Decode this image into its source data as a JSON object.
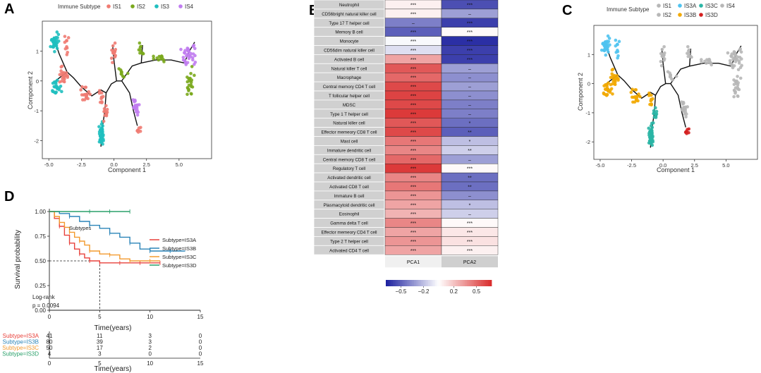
{
  "panel_letters": {
    "a": "A",
    "b": "B",
    "c": "C",
    "d": "D"
  },
  "colors": {
    "IS1": "#f07b72",
    "IS2": "#7aa81c",
    "IS3": "#1fbfbf",
    "IS4": "#c07cf0",
    "IS3A": "#e8413b",
    "IS3B": "#2a84b8",
    "IS3C": "#f39a2e",
    "IS3D": "#2aa06a",
    "heat_low": "#1b1f9e",
    "heat_mid": "#ffffff",
    "heat_high": "#d92b2b",
    "row_label_bg": "#d0d0d0"
  },
  "chart_data": [
    {
      "id": "A",
      "type": "scatter",
      "title": "",
      "xlabel": "Component 1",
      "ylabel": "Component 2",
      "xlim": [
        -5.5,
        7.5
      ],
      "ylim": [
        -2.6,
        2.0
      ],
      "xticks": [
        "-5.0",
        "-2.5",
        "0.0",
        "2.5",
        "5.0"
      ],
      "yticks": [
        "1",
        "0",
        "-1",
        "-2"
      ],
      "legend_title": "Immune Subtype",
      "legend": [
        "IS1",
        "IS2",
        "IS3",
        "IS4"
      ]
    },
    {
      "id": "B",
      "type": "heatmap",
      "columns": [
        "PCA1",
        "PCA2"
      ],
      "rows": [
        {
          "label": "Neutrophil",
          "v1": 0.05,
          "v2": -0.55,
          "s1": "***",
          "s2": "***"
        },
        {
          "label": "CD56bright natural killer cell",
          "v1": 0.05,
          "v2": -0.3,
          "s1": "***",
          "s2": "–"
        },
        {
          "label": "Type 17 T helper cell",
          "v1": -0.4,
          "v2": -0.6,
          "s1": "–",
          "s2": "***"
        },
        {
          "label": "Memory B cell",
          "v1": -0.5,
          "v2": 0.02,
          "s1": "***",
          "s2": "***"
        },
        {
          "label": "Monocyte",
          "v1": -0.02,
          "v2": -0.65,
          "s1": "***",
          "s2": "***"
        },
        {
          "label": "CD56dim natural killer cell",
          "v1": -0.1,
          "v2": -0.6,
          "s1": "***",
          "s2": "***"
        },
        {
          "label": "Activated B cell",
          "v1": 0.3,
          "v2": -0.6,
          "s1": "***",
          "s2": "***"
        },
        {
          "label": "Natural killer T cell",
          "v1": 0.55,
          "v2": -0.3,
          "s1": "***",
          "s2": "–"
        },
        {
          "label": "Macrophage",
          "v1": 0.5,
          "v2": -0.35,
          "s1": "***",
          "s2": "–"
        },
        {
          "label": "Central memory CD4 T cell",
          "v1": 0.6,
          "v2": -0.3,
          "s1": "***",
          "s2": "–"
        },
        {
          "label": "T follicular helper cell",
          "v1": 0.62,
          "v2": -0.35,
          "s1": "***",
          "s2": "–"
        },
        {
          "label": "MDSC",
          "v1": 0.6,
          "v2": -0.4,
          "s1": "***",
          "s2": "–"
        },
        {
          "label": "Type 1 T helper cell",
          "v1": 0.65,
          "v2": -0.4,
          "s1": "***",
          "s2": "–"
        },
        {
          "label": "Natural killer cell",
          "v1": 0.55,
          "v2": -0.45,
          "s1": "***",
          "s2": "*"
        },
        {
          "label": "Effector memeory CD8 T cell",
          "v1": 0.6,
          "v2": -0.5,
          "s1": "***",
          "s2": "**"
        },
        {
          "label": "Mast cell",
          "v1": 0.45,
          "v2": -0.2,
          "s1": "***",
          "s2": "*"
        },
        {
          "label": "Immature dendritic cell",
          "v1": 0.4,
          "v2": -0.15,
          "s1": "***",
          "s2": "**"
        },
        {
          "label": "Central memory CD8 T cell",
          "v1": 0.5,
          "v2": -0.3,
          "s1": "***",
          "s2": "–"
        },
        {
          "label": "Regulatory T cell",
          "v1": 0.65,
          "v2": 0.02,
          "s1": "***",
          "s2": "***"
        },
        {
          "label": "Activated dendritic cell",
          "v1": 0.4,
          "v2": -0.45,
          "s1": "***",
          "s2": "**"
        },
        {
          "label": "Activated CD8 T cell",
          "v1": 0.45,
          "v2": -0.45,
          "s1": "***",
          "s2": "**"
        },
        {
          "label": "Immature  B cell",
          "v1": 0.35,
          "v2": -0.35,
          "s1": "***",
          "s2": "–"
        },
        {
          "label": "Plasmacytoid dendritic cell",
          "v1": 0.3,
          "v2": -0.2,
          "s1": "***",
          "s2": "*"
        },
        {
          "label": "Eosinophil",
          "v1": 0.25,
          "v2": -0.15,
          "s1": "***",
          "s2": "–"
        },
        {
          "label": "Gamma delta T cell",
          "v1": 0.4,
          "v2": 0.02,
          "s1": "***",
          "s2": "***"
        },
        {
          "label": "Effector memeory CD4 T cell",
          "v1": 0.3,
          "v2": 0.08,
          "s1": "***",
          "s2": "***"
        },
        {
          "label": "Type 2 T helper cell",
          "v1": 0.35,
          "v2": 0.1,
          "s1": "***",
          "s2": "***"
        },
        {
          "label": "Activated CD4 T cell",
          "v1": 0.3,
          "v2": 0.05,
          "s1": "***",
          "s2": "***"
        }
      ],
      "colorbar_ticks": [
        "−0.5",
        "−0.2",
        "0.2",
        "0.5"
      ],
      "colorbar_range": [
        -0.7,
        0.7
      ]
    },
    {
      "id": "C",
      "type": "scatter",
      "xlabel": "Component 1",
      "ylabel": "Component 2",
      "xlim": [
        -5.5,
        7.5
      ],
      "ylim": [
        -2.6,
        2.0
      ],
      "xticks": [
        "-5.0",
        "-2.5",
        "0.0",
        "2.5",
        "5.0"
      ],
      "yticks": [
        "1",
        "0",
        "-1",
        "-2"
      ],
      "legend_title": "Immune Subtype",
      "legend": [
        "IS1",
        "IS3A",
        "IS3C",
        "IS4",
        "IS2",
        "IS3B",
        "IS3D"
      ]
    },
    {
      "id": "D",
      "type": "line",
      "xlabel": "Time(years)",
      "ylabel": "Survival probability",
      "xlim": [
        0,
        15
      ],
      "ylim": [
        0,
        1
      ],
      "xticks": [
        "0",
        "5",
        "10",
        "15"
      ],
      "yticks": [
        "1.00",
        "0.75",
        "0.50",
        "0.25",
        "0.00"
      ],
      "legend_title": "Subtypes",
      "annotations": [
        "Log-rank",
        "p = 0.0094"
      ],
      "median_marker": {
        "x": 5,
        "y": 0.5
      },
      "series": [
        {
          "name": "Subtype=IS3A",
          "x": [
            0,
            0.5,
            1,
            1.5,
            2,
            2.5,
            3,
            3.5,
            4,
            4.5,
            5,
            6,
            7,
            8,
            9,
            10,
            11
          ],
          "y": [
            1,
            0.93,
            0.85,
            0.76,
            0.68,
            0.62,
            0.57,
            0.53,
            0.5,
            0.5,
            0.48,
            0.48,
            0.48,
            0.48,
            0.48,
            0.48,
            0.48
          ]
        },
        {
          "name": "Subtype=IS3B",
          "x": [
            0,
            1,
            2,
            3,
            4,
            5,
            6,
            7,
            8,
            9,
            10,
            11,
            12,
            13.5
          ],
          "y": [
            1,
            0.98,
            0.95,
            0.9,
            0.86,
            0.83,
            0.78,
            0.74,
            0.68,
            0.62,
            0.6,
            0.6,
            0.6,
            0.6
          ]
        },
        {
          "name": "Subtype=IS3C",
          "x": [
            0,
            0.5,
            1,
            1.5,
            2,
            2.5,
            3,
            3.5,
            4,
            5,
            6,
            7,
            8,
            9,
            10,
            11
          ],
          "y": [
            1,
            0.95,
            0.89,
            0.84,
            0.79,
            0.74,
            0.7,
            0.66,
            0.6,
            0.57,
            0.56,
            0.52,
            0.5,
            0.5,
            0.5,
            0.5
          ]
        },
        {
          "name": "Subtype=IS3D",
          "x": [
            0,
            2,
            4,
            5,
            6,
            7,
            8
          ],
          "y": [
            1,
            1,
            1,
            1,
            1,
            1,
            1
          ]
        }
      ],
      "risk_table": {
        "xlabel": "Time(years)",
        "times": [
          "0",
          "5",
          "10",
          "15"
        ],
        "rows": [
          {
            "name": "Subtype=IS3A",
            "counts": [
              "41",
              "11",
              "3",
              "0"
            ]
          },
          {
            "name": "Subtype=IS3B",
            "counts": [
              "80",
              "39",
              "3",
              "0"
            ]
          },
          {
            "name": "Subtype=IS3C",
            "counts": [
              "50",
              "17",
              "2",
              "0"
            ]
          },
          {
            "name": "Subtype=IS3D",
            "counts": [
              "4",
              "3",
              "0",
              "0"
            ]
          }
        ]
      }
    }
  ]
}
